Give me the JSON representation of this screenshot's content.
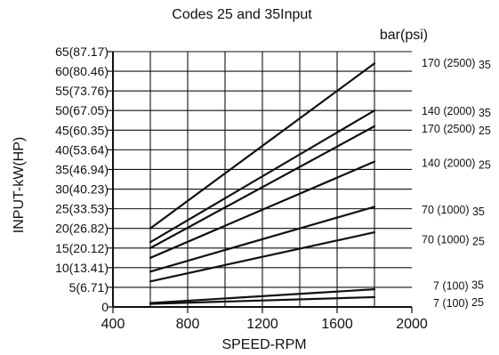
{
  "chart_data": {
    "type": "line",
    "title": "Codes 25 and 35Input",
    "right_unit_label": "bar(psi)",
    "xlabel": "SPEED-RPM",
    "ylabel": "INPUT-kW(HP)",
    "xlim": [
      400,
      2000
    ],
    "ylim": [
      0,
      65
    ],
    "x_ticks": [
      {
        "value": 400,
        "label": "400"
      },
      {
        "value": 800,
        "label": "800"
      },
      {
        "value": 1200,
        "label": "1200"
      },
      {
        "value": 1600,
        "label": "1600"
      },
      {
        "value": 2000,
        "label": "2000"
      }
    ],
    "y_ticks": [
      {
        "value": 0,
        "label": "0"
      },
      {
        "value": 5,
        "label": "5(6.71)"
      },
      {
        "value": 10,
        "label": "10(13.41)"
      },
      {
        "value": 15,
        "label": "15(20.12)"
      },
      {
        "value": 20,
        "label": "20(26.82)"
      },
      {
        "value": 25,
        "label": "25(33.53)"
      },
      {
        "value": 30,
        "label": "30(40.23)"
      },
      {
        "value": 35,
        "label": "35(46.94)"
      },
      {
        "value": 40,
        "label": "40(53.64)"
      },
      {
        "value": 45,
        "label": "45(60.35)"
      },
      {
        "value": 50,
        "label": "50(67.05)"
      },
      {
        "value": 55,
        "label": "55(73.76)"
      },
      {
        "value": 60,
        "label": "60(80.46)"
      },
      {
        "value": 65,
        "label": "65(87.17)"
      }
    ],
    "vertical_grid": [
      600,
      800,
      1000,
      1200,
      1400,
      1600,
      1800
    ],
    "horizontal_grid": [
      5,
      10,
      15,
      20,
      25,
      30,
      35,
      40,
      45,
      50,
      55,
      60,
      65
    ],
    "grid": true,
    "series": [
      {
        "label_main": "170 (2500)",
        "label_sub": "35",
        "x": [
          600,
          1800
        ],
        "y": [
          20,
          62
        ]
      },
      {
        "label_main": "140 (2000)",
        "label_sub": "35",
        "x": [
          600,
          1800
        ],
        "y": [
          16.5,
          50
        ]
      },
      {
        "label_main": "170 (2500)",
        "label_sub": "25",
        "x": [
          600,
          1800
        ],
        "y": [
          15,
          46
        ]
      },
      {
        "label_main": "140 (2000)",
        "label_sub": "25",
        "x": [
          600,
          1800
        ],
        "y": [
          12.5,
          37
        ]
      },
      {
        "label_main": "70 (1000)",
        "label_sub": "35",
        "x": [
          600,
          1800
        ],
        "y": [
          9,
          25.5
        ]
      },
      {
        "label_main": "70 (1000)",
        "label_sub": "25",
        "x": [
          600,
          1800
        ],
        "y": [
          6.5,
          19
        ]
      },
      {
        "label_main": "7 (100)",
        "label_sub": "35",
        "x": [
          600,
          1800
        ],
        "y": [
          1,
          4.5
        ]
      },
      {
        "label_main": "7 (100)",
        "label_sub": "25",
        "x": [
          600,
          1800
        ],
        "y": [
          0.8,
          2.5
        ]
      }
    ]
  }
}
